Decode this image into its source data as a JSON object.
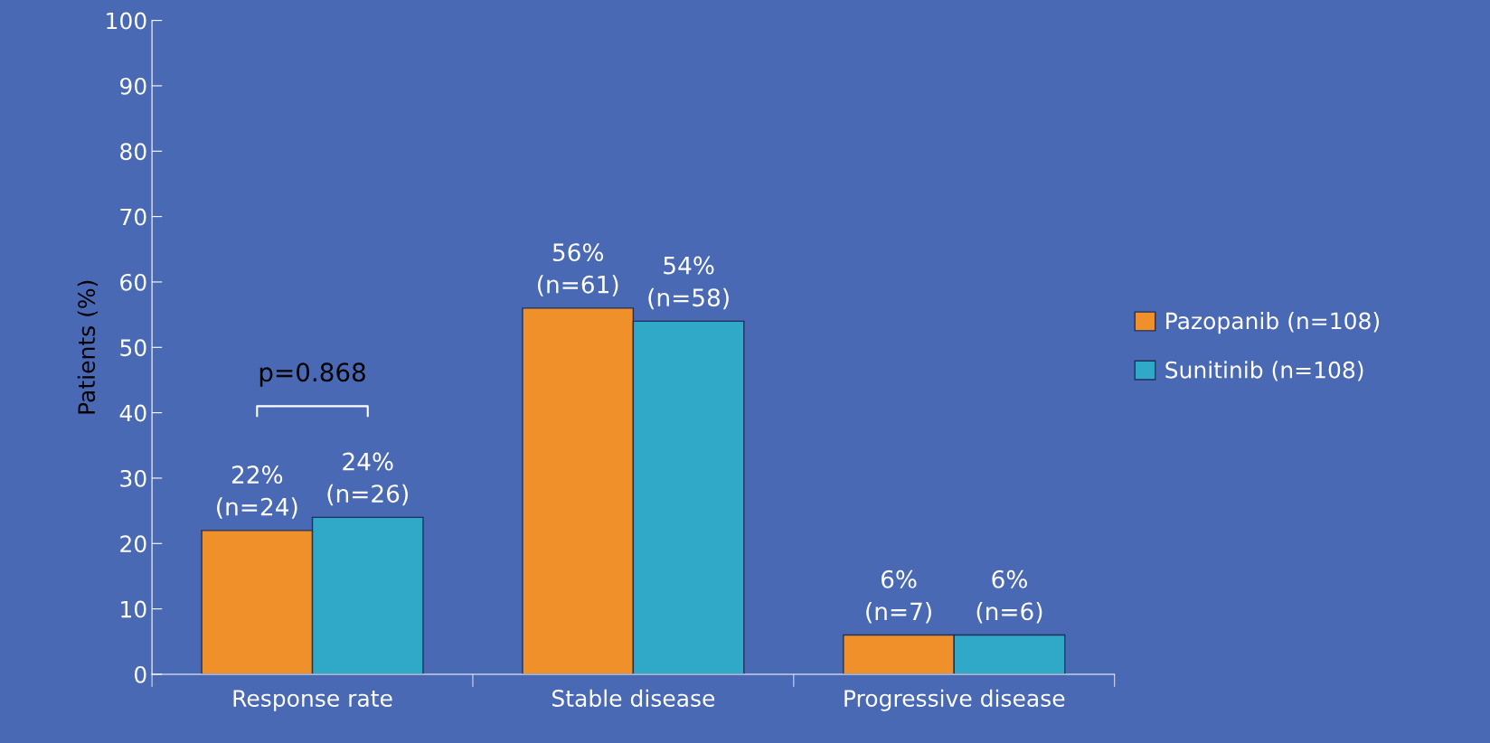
{
  "chart_data": {
    "type": "bar",
    "ylabel": "Patients (%)",
    "categories": [
      "Response rate",
      "Stable disease",
      "Progressive disease"
    ],
    "series": [
      {
        "name": "Pazopanib (n=108)",
        "color": "#f0902a",
        "values": [
          22,
          56,
          6
        ],
        "value_labels": [
          "22%\n(n=24)",
          "56%\n(n=61)",
          "6%\n(n=7)"
        ]
      },
      {
        "name": "Sunitinib (n=108)",
        "color": "#30a8c8",
        "values": [
          24,
          54,
          6
        ],
        "value_labels": [
          "24%\n(n=26)",
          "54%\n(n=58)",
          "6%\n(n=6)"
        ]
      }
    ],
    "ylim": [
      0,
      100
    ],
    "yticks": [
      0,
      10,
      20,
      30,
      40,
      50,
      60,
      70,
      80,
      90,
      100
    ],
    "grid": false,
    "legend": "right",
    "annotations": [
      "p=0.868"
    ]
  }
}
